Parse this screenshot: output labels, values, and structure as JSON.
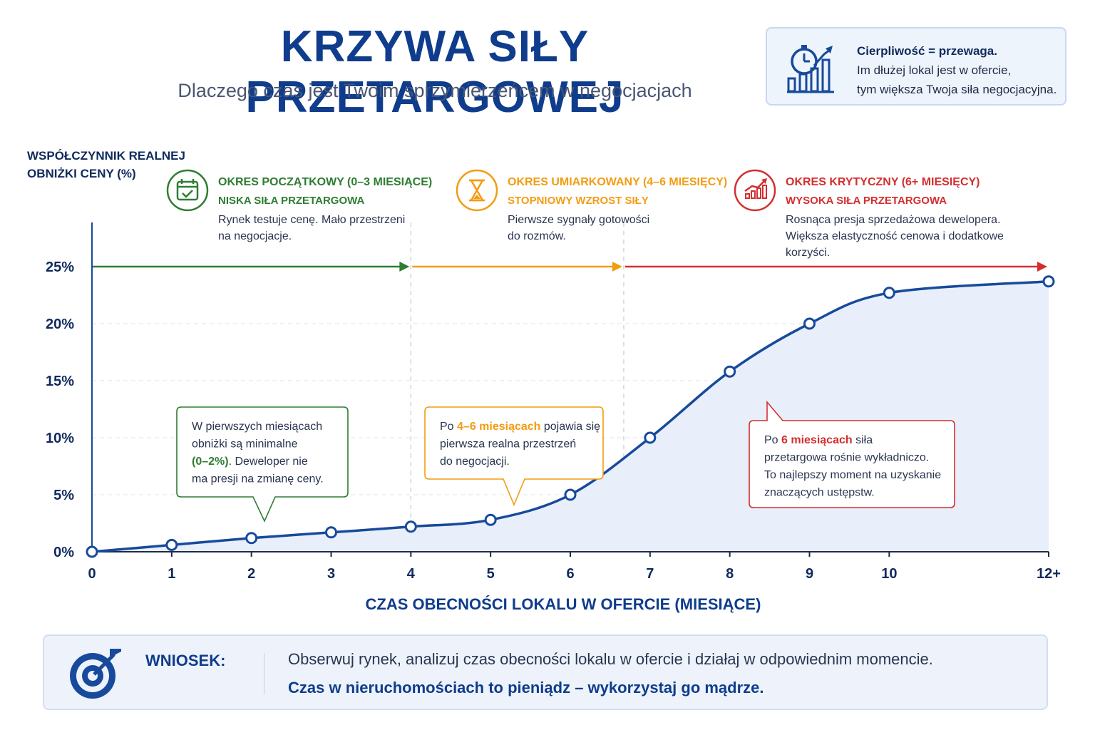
{
  "header": {
    "title": "KRZYWA SIŁY PRZETARGOWEJ",
    "subtitle": "Dlaczego czas jest Twoim sprzymierzeńcem w negocjacjach"
  },
  "tip": {
    "line1": "Cierpliwość = przewaga.",
    "line2": "Im dłużej lokal jest w ofercie,",
    "line3": "tym większa Twoja siła negocjacyjna.",
    "icon": "stopwatch-growth-chart-icon"
  },
  "chart_data": {
    "type": "line",
    "ylabel_line1": "WSPÓŁCZYNNIK REALNEJ",
    "ylabel_line2": "OBNIŻKI CENY (%)",
    "xlabel": "CZAS OBECNOŚCI LOKALU W OFERCIE (MIESIĄCE)",
    "x_ticks": [
      "0",
      "1",
      "2",
      "3",
      "4",
      "5",
      "6",
      "7",
      "8",
      "9",
      "10",
      "12+"
    ],
    "y_ticks": [
      "0%",
      "5%",
      "10%",
      "15%",
      "20%",
      "25%"
    ],
    "ylim": [
      0,
      25
    ],
    "grid": true,
    "series": [
      {
        "x": [
          0,
          1,
          2,
          3,
          4,
          5,
          6,
          7,
          8,
          9,
          10,
          12
        ],
        "values": [
          0,
          0.6,
          1.2,
          1.7,
          2.2,
          2.8,
          5,
          10,
          15.8,
          20,
          22.7,
          23.7
        ]
      }
    ],
    "colors": {
      "line": "#174a9c",
      "fill": "#e8effa",
      "green": "#2e7d32",
      "orange": "#f39c12",
      "red": "#d32f2f"
    },
    "periods": [
      {
        "title": "OKRES POCZĄTKOWY (0–3 MIESIĄCE)",
        "subtitle": "NISKA SIŁA PRZETARGOWA",
        "desc": [
          "Rynek testuje cenę. Mało przestrzeni",
          "na negocjacje."
        ],
        "color": "#2e7d32",
        "icon": "calendar-check-icon",
        "x_start": 0,
        "x_end": 4
      },
      {
        "title": "OKRES UMIARKOWANY (4–6 MIESIĘCY)",
        "subtitle": "STOPNIOWY WZROST SIŁY",
        "desc": [
          "Pierwsze sygnały gotowości",
          "do rozmów."
        ],
        "color": "#f39c12",
        "icon": "hourglass-icon",
        "x_start": 4,
        "x_end": 6.67
      },
      {
        "title": "OKRES KRYTYCZNY (6+ MIESIĘCY)",
        "subtitle": "WYSOKA SIŁA PRZETARGOWA",
        "desc": [
          "Rosnąca presja sprzedażowa dewelopera.",
          "Większa elastyczność cenowa i dodatkowe",
          "korzyści."
        ],
        "color": "#d32f2f",
        "icon": "rising-bars-icon",
        "x_start": 6.67,
        "x_end": 12
      }
    ],
    "callouts": [
      {
        "lines": [
          [
            {
              "t": "W pierwszych miesiącach"
            }
          ],
          [
            {
              "t": "obniżki są minimalne"
            }
          ],
          [
            {
              "t": "(0–2%)",
              "hl": true
            },
            {
              "t": ". Deweloper nie"
            }
          ],
          [
            {
              "t": "ma presji na zmianę ceny."
            }
          ]
        ],
        "color": "#2e7d32"
      },
      {
        "lines": [
          [
            {
              "t": "Po "
            },
            {
              "t": "4–6 miesiącach",
              "hl": true
            },
            {
              "t": " pojawia się"
            }
          ],
          [
            {
              "t": "pierwsza realna przestrzeń"
            }
          ],
          [
            {
              "t": "do negocjacji."
            }
          ]
        ],
        "color": "#f39c12"
      },
      {
        "lines": [
          [
            {
              "t": "Po "
            },
            {
              "t": "6 miesiącach",
              "hl": true
            },
            {
              "t": " siła"
            }
          ],
          [
            {
              "t": "przetargowa rośnie wykładniczo."
            }
          ],
          [
            {
              "t": "To najlepszy moment na uzyskanie"
            }
          ],
          [
            {
              "t": "znaczących ustępstw."
            }
          ]
        ],
        "color": "#d32f2f"
      }
    ]
  },
  "conclusion": {
    "label": "WNIOSEK:",
    "text": "Obserwuj rynek, analizuj czas obecności lokalu w ofercie i działaj w odpowiednim momencie.",
    "strong": "Czas w nieruchomościach to pieniądz – wykorzystaj go mądrze.",
    "icon": "target-arrow-icon"
  }
}
